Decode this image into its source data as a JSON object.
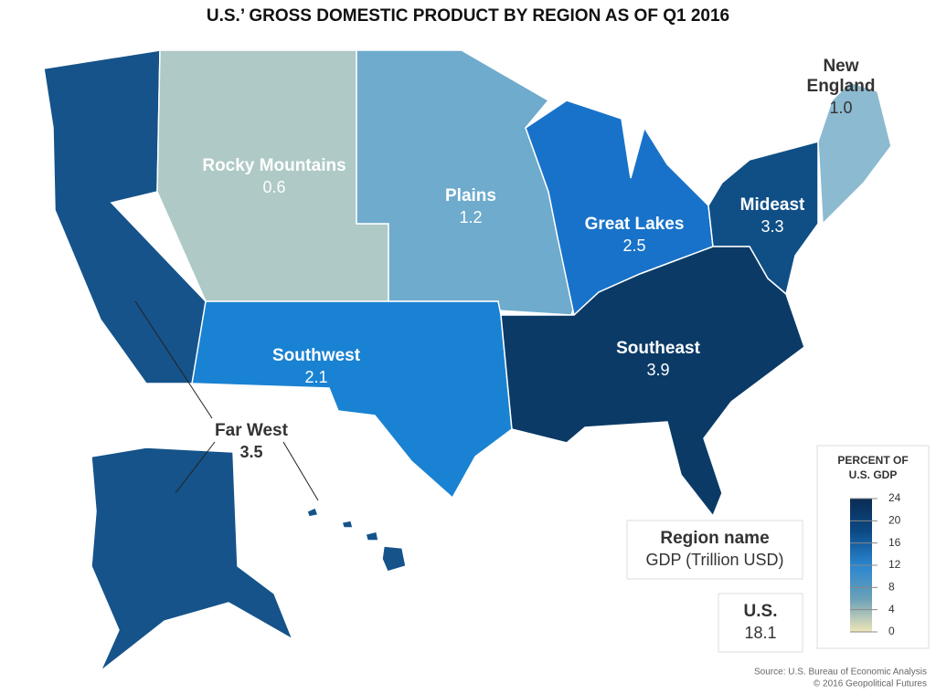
{
  "title": "U.S.’ GROSS DOMESTIC PRODUCT BY REGION AS OF Q1 2016",
  "regions": [
    {
      "name": "Far West",
      "value": "3.5",
      "color": "#15538a"
    },
    {
      "name": "Rocky Mountains",
      "value": "0.6",
      "color": "#aec9c6"
    },
    {
      "name": "Plains",
      "value": "1.2",
      "color": "#6eabcc"
    },
    {
      "name": "Southwest",
      "value": "2.1",
      "color": "#1a82d2"
    },
    {
      "name": "Great Lakes",
      "value": "2.5",
      "color": "#1872c9"
    },
    {
      "name": "Mideast",
      "value": "3.3",
      "color": "#0f4f86"
    },
    {
      "name": "Southeast",
      "value": "3.9",
      "color": "#0b3a66"
    },
    {
      "name": "New England",
      "value": "1.0",
      "color": "#8cbad0"
    }
  ],
  "key": {
    "name": "Region name",
    "value": "GDP (Trillion USD)"
  },
  "total": {
    "name": "U.S.",
    "value": "18.1"
  },
  "legend": {
    "title": [
      "PERCENT OF",
      "U.S. GDP"
    ],
    "range": [
      0,
      24
    ],
    "ticks": [
      0,
      4,
      8,
      12,
      16,
      20,
      24
    ],
    "colors": [
      "#efe6b8",
      "#6aa0b8",
      "#2a86d0",
      "#0c4a86",
      "#0a2c52"
    ]
  },
  "source": [
    "Source: U.S. Bureau of Economic Analysis",
    "© 2016 Geopolitical Futures"
  ]
}
